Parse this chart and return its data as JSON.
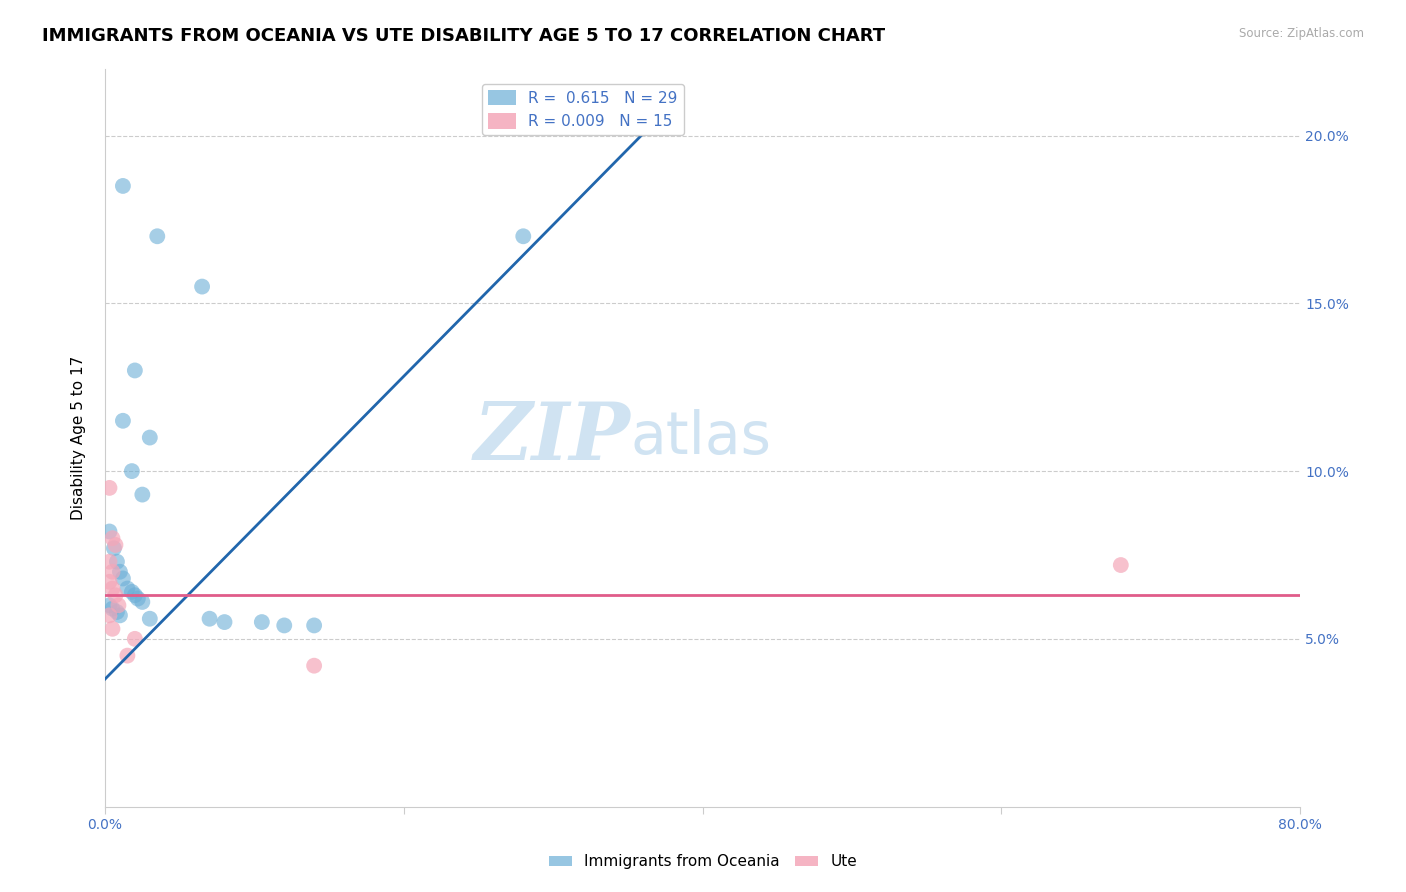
{
  "title": "IMMIGRANTS FROM OCEANIA VS UTE DISABILITY AGE 5 TO 17 CORRELATION CHART",
  "source": "Source: ZipAtlas.com",
  "ylabel_label": "Disability Age 5 to 17",
  "xlim": [
    0.0,
    0.8
  ],
  "ylim": [
    0.0,
    0.22
  ],
  "xticks": [
    0.0,
    0.2,
    0.4,
    0.6,
    0.8
  ],
  "xtick_labels": [
    "0.0%",
    "",
    "",
    "",
    "80.0%"
  ],
  "yticks_right": [
    0.05,
    0.1,
    0.15,
    0.2
  ],
  "ytick_right_labels": [
    "5.0%",
    "10.0%",
    "15.0%",
    "20.0%"
  ],
  "grid_color": "#cccccc",
  "watermark_zip": "ZIP",
  "watermark_atlas": "atlas",
  "legend_entries": [
    {
      "label": "R =  0.615   N = 29",
      "color": "#a8c4e0"
    },
    {
      "label": "R = 0.009   N = 15",
      "color": "#f4a7b9"
    }
  ],
  "blue_scatter": [
    [
      0.012,
      0.185
    ],
    [
      0.035,
      0.17
    ],
    [
      0.065,
      0.155
    ],
    [
      0.28,
      0.17
    ],
    [
      0.02,
      0.13
    ],
    [
      0.012,
      0.115
    ],
    [
      0.03,
      0.11
    ],
    [
      0.018,
      0.1
    ],
    [
      0.025,
      0.093
    ],
    [
      0.003,
      0.082
    ],
    [
      0.006,
      0.077
    ],
    [
      0.008,
      0.073
    ],
    [
      0.01,
      0.07
    ],
    [
      0.012,
      0.068
    ],
    [
      0.015,
      0.065
    ],
    [
      0.018,
      0.064
    ],
    [
      0.02,
      0.063
    ],
    [
      0.022,
      0.062
    ],
    [
      0.025,
      0.061
    ],
    [
      0.003,
      0.06
    ],
    [
      0.005,
      0.059
    ],
    [
      0.008,
      0.058
    ],
    [
      0.01,
      0.057
    ],
    [
      0.03,
      0.056
    ],
    [
      0.07,
      0.056
    ],
    [
      0.08,
      0.055
    ],
    [
      0.105,
      0.055
    ],
    [
      0.12,
      0.054
    ],
    [
      0.14,
      0.054
    ]
  ],
  "pink_scatter": [
    [
      0.003,
      0.095
    ],
    [
      0.005,
      0.08
    ],
    [
      0.007,
      0.078
    ],
    [
      0.003,
      0.073
    ],
    [
      0.005,
      0.07
    ],
    [
      0.003,
      0.067
    ],
    [
      0.005,
      0.065
    ],
    [
      0.007,
      0.063
    ],
    [
      0.009,
      0.06
    ],
    [
      0.003,
      0.057
    ],
    [
      0.005,
      0.053
    ],
    [
      0.02,
      0.05
    ],
    [
      0.015,
      0.045
    ],
    [
      0.14,
      0.042
    ],
    [
      0.68,
      0.072
    ]
  ],
  "blue_line_x": [
    0.0,
    0.37
  ],
  "blue_line_y_start": 0.038,
  "blue_line_y_end": 0.205,
  "pink_line_x": [
    0.0,
    0.8
  ],
  "pink_line_y": 0.063,
  "scatter_size": 130,
  "blue_color": "#6baed6",
  "pink_color": "#f4a7b9",
  "blue_line_color": "#2166ac",
  "pink_line_color": "#e05c8a",
  "background_color": "#ffffff",
  "title_fontsize": 13,
  "axis_fontsize": 10,
  "legend_fontsize": 11
}
